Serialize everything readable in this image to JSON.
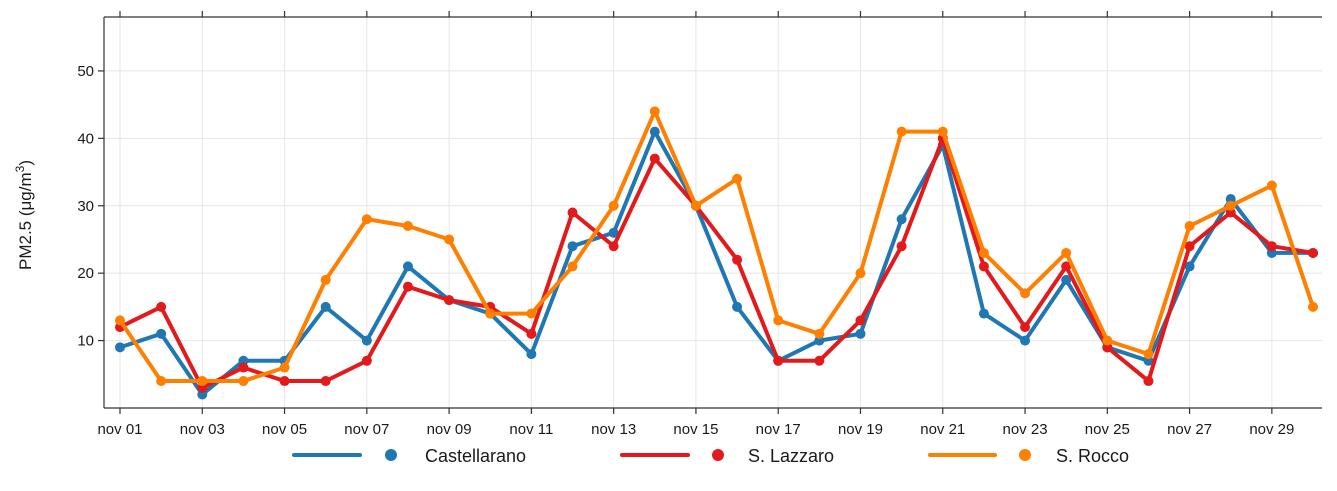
{
  "chart_data": {
    "type": "line",
    "title": "",
    "xlabel": "",
    "ylabel_prefix": "PM2.5 (",
    "ylabel_mu": "μ",
    "ylabel_unit": "g/m",
    "ylabel_sup": "3",
    "ylabel_suffix": ")",
    "ylim": [
      0,
      58
    ],
    "yticks": [
      10,
      20,
      30,
      40,
      50
    ],
    "x": [
      "nov 01",
      "nov 02",
      "nov 03",
      "nov 04",
      "nov 05",
      "nov 06",
      "nov 07",
      "nov 08",
      "nov 09",
      "nov 10",
      "nov 11",
      "nov 12",
      "nov 13",
      "nov 14",
      "nov 15",
      "nov 16",
      "nov 17",
      "nov 18",
      "nov 19",
      "nov 20",
      "nov 21",
      "nov 22",
      "nov 23",
      "nov 24",
      "nov 25",
      "nov 26",
      "nov 27",
      "nov 28",
      "nov 29",
      "nov 30"
    ],
    "xtick_labels": [
      "nov 01",
      "nov 03",
      "nov 05",
      "nov 07",
      "nov 09",
      "nov 11",
      "nov 13",
      "nov 15",
      "nov 17",
      "nov 19",
      "nov 21",
      "nov 23",
      "nov 25",
      "nov 27",
      "nov 29"
    ],
    "grid": true,
    "legend_position": "bottom",
    "series": [
      {
        "name": "Castellarano",
        "color": "#1f78b4",
        "values": [
          9,
          11,
          2,
          7,
          7,
          15,
          10,
          21,
          16,
          14,
          8,
          24,
          26,
          41,
          30,
          15,
          7,
          10,
          11,
          28,
          39,
          14,
          10,
          19,
          9,
          7,
          21,
          31,
          23,
          23
        ]
      },
      {
        "name": "S. Lazzaro",
        "color": "#e31a1c",
        "values": [
          12,
          15,
          3,
          6,
          4,
          4,
          7,
          18,
          16,
          15,
          11,
          29,
          24,
          37,
          30,
          22,
          7,
          7,
          13,
          24,
          40,
          21,
          12,
          21,
          9,
          4,
          24,
          29,
          24,
          23
        ]
      },
      {
        "name": "S. Rocco",
        "color": "#ff7f00",
        "values": [
          13,
          4,
          4,
          4,
          6,
          19,
          28,
          27,
          25,
          14,
          14,
          21,
          30,
          44,
          30,
          34,
          13,
          11,
          20,
          41,
          41,
          23,
          17,
          23,
          10,
          8,
          27,
          30,
          33,
          15
        ]
      }
    ]
  }
}
